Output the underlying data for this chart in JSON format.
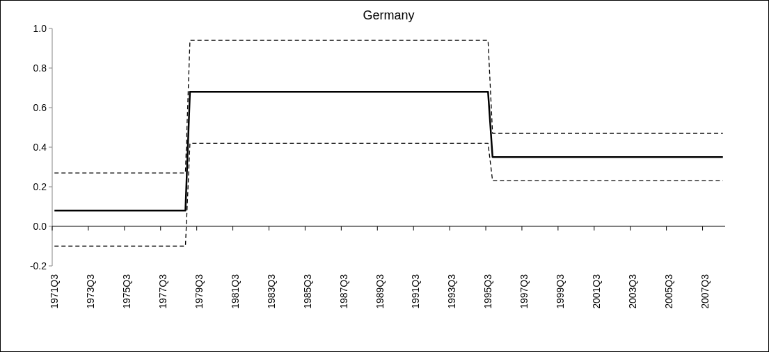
{
  "chart_data": {
    "type": "line",
    "title": "Germany",
    "categories": [
      "1971Q3",
      null,
      null,
      null,
      null,
      null,
      null,
      null,
      "1973Q3",
      null,
      null,
      null,
      null,
      null,
      null,
      null,
      "1975Q3",
      null,
      null,
      null,
      null,
      null,
      null,
      null,
      "1977Q3",
      null,
      null,
      null,
      null,
      null,
      null,
      null,
      "1979Q3",
      null,
      null,
      null,
      null,
      null,
      null,
      null,
      "1981Q3",
      null,
      null,
      null,
      null,
      null,
      null,
      null,
      "1983Q3",
      null,
      null,
      null,
      null,
      null,
      null,
      null,
      "1985Q3",
      null,
      null,
      null,
      null,
      null,
      null,
      null,
      "1987Q3",
      null,
      null,
      null,
      null,
      null,
      null,
      null,
      "1989Q3",
      null,
      null,
      null,
      null,
      null,
      null,
      null,
      "1991Q3",
      null,
      null,
      null,
      null,
      null,
      null,
      null,
      "1993Q3",
      null,
      null,
      null,
      null,
      null,
      null,
      null,
      "1995Q3",
      null,
      null,
      null,
      null,
      null,
      null,
      null,
      "1997Q3",
      null,
      null,
      null,
      null,
      null,
      null,
      null,
      "1999Q3",
      null,
      null,
      null,
      null,
      null,
      null,
      null,
      "2001Q3",
      null,
      null,
      null,
      null,
      null,
      null,
      null,
      "2003Q3",
      null,
      null,
      null,
      null,
      null,
      null,
      null,
      "2005Q3",
      null,
      null,
      null,
      null,
      null,
      null,
      null,
      "2007Q3",
      null,
      null,
      null,
      null
    ],
    "series": [
      {
        "color": "#000000",
        "line_style": "solid",
        "values": [
          0.08,
          0.08,
          0.08,
          0.08,
          0.08,
          0.08,
          0.08,
          0.08,
          0.08,
          0.08,
          0.08,
          0.08,
          0.08,
          0.08,
          0.08,
          0.08,
          0.08,
          0.08,
          0.08,
          0.08,
          0.08,
          0.08,
          0.08,
          0.08,
          0.08,
          0.08,
          0.08,
          0.08,
          0.08,
          0.08,
          0.68,
          0.68,
          0.68,
          0.68,
          0.68,
          0.68,
          0.68,
          0.68,
          0.68,
          0.68,
          0.68,
          0.68,
          0.68,
          0.68,
          0.68,
          0.68,
          0.68,
          0.68,
          0.68,
          0.68,
          0.68,
          0.68,
          0.68,
          0.68,
          0.68,
          0.68,
          0.68,
          0.68,
          0.68,
          0.68,
          0.68,
          0.68,
          0.68,
          0.68,
          0.68,
          0.68,
          0.68,
          0.68,
          0.68,
          0.68,
          0.68,
          0.68,
          0.68,
          0.68,
          0.68,
          0.68,
          0.68,
          0.68,
          0.68,
          0.68,
          0.68,
          0.68,
          0.68,
          0.68,
          0.68,
          0.68,
          0.68,
          0.68,
          0.68,
          0.68,
          0.68,
          0.68,
          0.68,
          0.68,
          0.68,
          0.68,
          0.68,
          0.35,
          0.35,
          0.35,
          0.35,
          0.35,
          0.35,
          0.35,
          0.35,
          0.35,
          0.35,
          0.35,
          0.35,
          0.35,
          0.35,
          0.35,
          0.35,
          0.35,
          0.35,
          0.35,
          0.35,
          0.35,
          0.35,
          0.35,
          0.35,
          0.35,
          0.35,
          0.35,
          0.35,
          0.35,
          0.35,
          0.35,
          0.35,
          0.35,
          0.35,
          0.35,
          0.35,
          0.35,
          0.35,
          0.35,
          0.35,
          0.35,
          0.35,
          0.35,
          0.35,
          0.35,
          0.35,
          0.35,
          0.35,
          0.35,
          0.35,
          0.35,
          0.35
        ]
      },
      {
        "color": "#000000",
        "line_style": "dashed",
        "values": [
          0.27,
          0.27,
          0.27,
          0.27,
          0.27,
          0.27,
          0.27,
          0.27,
          0.27,
          0.27,
          0.27,
          0.27,
          0.27,
          0.27,
          0.27,
          0.27,
          0.27,
          0.27,
          0.27,
          0.27,
          0.27,
          0.27,
          0.27,
          0.27,
          0.27,
          0.27,
          0.27,
          0.27,
          0.27,
          0.27,
          0.94,
          0.94,
          0.94,
          0.94,
          0.94,
          0.94,
          0.94,
          0.94,
          0.94,
          0.94,
          0.94,
          0.94,
          0.94,
          0.94,
          0.94,
          0.94,
          0.94,
          0.94,
          0.94,
          0.94,
          0.94,
          0.94,
          0.94,
          0.94,
          0.94,
          0.94,
          0.94,
          0.94,
          0.94,
          0.94,
          0.94,
          0.94,
          0.94,
          0.94,
          0.94,
          0.94,
          0.94,
          0.94,
          0.94,
          0.94,
          0.94,
          0.94,
          0.94,
          0.94,
          0.94,
          0.94,
          0.94,
          0.94,
          0.94,
          0.94,
          0.94,
          0.94,
          0.94,
          0.94,
          0.94,
          0.94,
          0.94,
          0.94,
          0.94,
          0.94,
          0.94,
          0.94,
          0.94,
          0.94,
          0.94,
          0.94,
          0.94,
          0.47,
          0.47,
          0.47,
          0.47,
          0.47,
          0.47,
          0.47,
          0.47,
          0.47,
          0.47,
          0.47,
          0.47,
          0.47,
          0.47,
          0.47,
          0.47,
          0.47,
          0.47,
          0.47,
          0.47,
          0.47,
          0.47,
          0.47,
          0.47,
          0.47,
          0.47,
          0.47,
          0.47,
          0.47,
          0.47,
          0.47,
          0.47,
          0.47,
          0.47,
          0.47,
          0.47,
          0.47,
          0.47,
          0.47,
          0.47,
          0.47,
          0.47,
          0.47,
          0.47,
          0.47,
          0.47,
          0.47,
          0.47,
          0.47,
          0.47,
          0.47,
          0.47
        ]
      },
      {
        "color": "#000000",
        "line_style": "dashed",
        "values": [
          -0.1,
          -0.1,
          -0.1,
          -0.1,
          -0.1,
          -0.1,
          -0.1,
          -0.1,
          -0.1,
          -0.1,
          -0.1,
          -0.1,
          -0.1,
          -0.1,
          -0.1,
          -0.1,
          -0.1,
          -0.1,
          -0.1,
          -0.1,
          -0.1,
          -0.1,
          -0.1,
          -0.1,
          -0.1,
          -0.1,
          -0.1,
          -0.1,
          -0.1,
          -0.1,
          0.42,
          0.42,
          0.42,
          0.42,
          0.42,
          0.42,
          0.42,
          0.42,
          0.42,
          0.42,
          0.42,
          0.42,
          0.42,
          0.42,
          0.42,
          0.42,
          0.42,
          0.42,
          0.42,
          0.42,
          0.42,
          0.42,
          0.42,
          0.42,
          0.42,
          0.42,
          0.42,
          0.42,
          0.42,
          0.42,
          0.42,
          0.42,
          0.42,
          0.42,
          0.42,
          0.42,
          0.42,
          0.42,
          0.42,
          0.42,
          0.42,
          0.42,
          0.42,
          0.42,
          0.42,
          0.42,
          0.42,
          0.42,
          0.42,
          0.42,
          0.42,
          0.42,
          0.42,
          0.42,
          0.42,
          0.42,
          0.42,
          0.42,
          0.42,
          0.42,
          0.42,
          0.42,
          0.42,
          0.42,
          0.42,
          0.42,
          0.42,
          0.23,
          0.23,
          0.23,
          0.23,
          0.23,
          0.23,
          0.23,
          0.23,
          0.23,
          0.23,
          0.23,
          0.23,
          0.23,
          0.23,
          0.23,
          0.23,
          0.23,
          0.23,
          0.23,
          0.23,
          0.23,
          0.23,
          0.23,
          0.23,
          0.23,
          0.23,
          0.23,
          0.23,
          0.23,
          0.23,
          0.23,
          0.23,
          0.23,
          0.23,
          0.23,
          0.23,
          0.23,
          0.23,
          0.23,
          0.23,
          0.23,
          0.23,
          0.23,
          0.23,
          0.23,
          0.23,
          0.23,
          0.23,
          0.23,
          0.23,
          0.23,
          0.23
        ]
      }
    ],
    "ylim": [
      -0.2,
      1.0
    ],
    "yticks": [
      {
        "value": -0.2,
        "label": "-0.2"
      },
      {
        "value": 0,
        "label": "0.0"
      },
      {
        "value": 0.2,
        "label": "0.2"
      },
      {
        "value": 0.4,
        "label": "0.4"
      },
      {
        "value": 0.6,
        "label": "0.6"
      },
      {
        "value": 0.8,
        "label": "0.8"
      },
      {
        "value": 1.0,
        "label": "1.0"
      }
    ],
    "marker": "none"
  }
}
